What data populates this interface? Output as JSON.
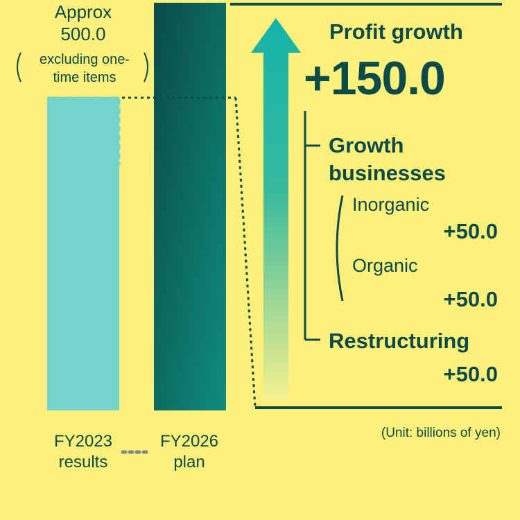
{
  "chart_data": {
    "type": "bar",
    "categories": [
      "FY2023 results",
      "FY2026 plan"
    ],
    "category_lines": [
      [
        "FY2023",
        "results"
      ],
      [
        "FY2026",
        "plan"
      ]
    ],
    "values": [
      500.0,
      650.0
    ],
    "fy2023_note": {
      "approx_line1": "Approx",
      "approx_line2": "500.0",
      "excl_line1": "excluding one-",
      "excl_line2": "time items"
    },
    "ylim": [
      0,
      650
    ],
    "bar_colors": [
      "#74d4cc",
      "#0b5f58"
    ],
    "growth": {
      "title": "Profit growth",
      "total": "+150.0",
      "growth_businesses_line1": "Growth",
      "growth_businesses_line2": "businesses",
      "inorganic_label": "Inorganic",
      "inorganic_value": "+50.0",
      "organic_label": "Organic",
      "organic_value": "+50.0",
      "restructuring_label": "Restructuring",
      "restructuring_value": "+50.0"
    },
    "unit_note": "(Unit: billions of yen)"
  }
}
